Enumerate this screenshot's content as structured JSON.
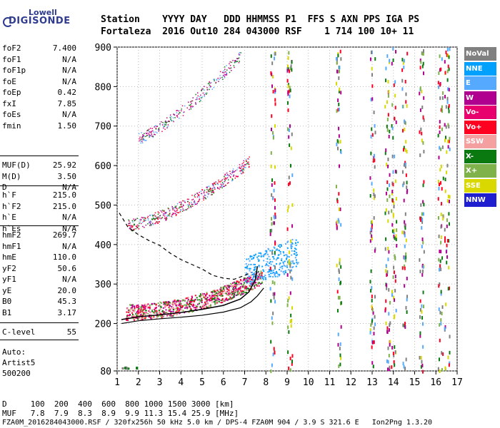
{
  "logo": {
    "line1": "Lowell",
    "line2": "DIGISONDE"
  },
  "header": {
    "line1": "Station    YYYY DAY   DDD HHMMSS P1  FFS S AXN PPS IGA PS",
    "line2": "Fortaleza  2016 Out10 284 043000 RSF    1 714 100 10+ 11"
  },
  "params": {
    "group1": [
      {
        "k": "foF2",
        "v": "7.400"
      },
      {
        "k": "foF1",
        "v": "N/A"
      },
      {
        "k": "foF1p",
        "v": "N/A"
      },
      {
        "k": "foE",
        "v": "N/A"
      },
      {
        "k": "foEp",
        "v": "0.42"
      },
      {
        "k": "fxI",
        "v": "7.85"
      },
      {
        "k": "foEs",
        "v": "N/A"
      },
      {
        "k": "fmin",
        "v": "1.50"
      }
    ],
    "group2": [
      {
        "k": "MUF(D)",
        "v": "25.92"
      },
      {
        "k": "M(D)",
        "v": "3.50"
      },
      {
        "k": "D",
        "v": "N/A"
      }
    ],
    "group3": [
      {
        "k": "h`F",
        "v": "215.0"
      },
      {
        "k": "h`F2",
        "v": "215.0"
      },
      {
        "k": "h`E",
        "v": "N/A"
      },
      {
        "k": "h`Es",
        "v": "N/A"
      }
    ],
    "group4": [
      {
        "k": "hmF2",
        "v": "269.7"
      },
      {
        "k": "hmF1",
        "v": "N/A"
      },
      {
        "k": "hmE",
        "v": "110.0"
      },
      {
        "k": "yF2",
        "v": "50.6"
      },
      {
        "k": "yF1",
        "v": "N/A"
      },
      {
        "k": "yE",
        "v": "20.0"
      },
      {
        "k": "B0",
        "v": "45.3"
      },
      {
        "k": "B1",
        "v": "3.17"
      }
    ],
    "group5": [
      {
        "k": "C-level",
        "v": "55"
      }
    ]
  },
  "auto": {
    "l1": "Auto:",
    "l2": "Artist5",
    "l3": "500200"
  },
  "footer": {
    "row1": "D     100  200  400  600  800 1000 1500 3000 [km]",
    "row2": "MUF   7.8  7.9  8.3  8.9  9.9 11.3 15.4 25.9 [MHz]",
    "row3": "FZA0M_2016284043000.RSF / 320fx256h 50 kHz 5.0 km / DPS-4 FZA0M 904 / 3.9 S 321.6 E   Ion2Png 1.3.20"
  },
  "legend": [
    {
      "label": "NoVal",
      "color": "#808080"
    },
    {
      "label": "NNE",
      "color": "#00a0ff"
    },
    {
      "label": "E",
      "color": "#55aaff"
    },
    {
      "label": "W",
      "color": "#b0008f"
    },
    {
      "label": "Vo-",
      "color": "#e8006e"
    },
    {
      "label": "Vo+",
      "color": "#ff0020"
    },
    {
      "label": "SSW",
      "color": "#f5a0a0"
    },
    {
      "label": "X-",
      "color": "#0a7a10"
    },
    {
      "label": "X+",
      "color": "#7fb24a"
    },
    {
      "label": "SSE",
      "color": "#d9d800"
    },
    {
      "label": "NNW",
      "color": "#1f1fd0"
    }
  ],
  "chart_data": {
    "type": "scatter",
    "xlim": [
      1,
      17
    ],
    "ylim": [
      80,
      900
    ],
    "x_ticks": [
      "1",
      "2",
      "3",
      "4",
      "5",
      "6",
      "7",
      "8",
      "9",
      "10",
      "11",
      "12",
      "13",
      "14",
      "15",
      "16",
      "17"
    ],
    "y_ticks": [
      "80",
      "200",
      "300",
      "400",
      "500",
      "600",
      "700",
      "800",
      "900"
    ],
    "grid": "dotted",
    "series": [
      {
        "name": "trace-h",
        "values": [
          [
            1.2,
            210
          ],
          [
            2,
            217
          ],
          [
            3,
            222
          ],
          [
            4,
            228
          ],
          [
            5,
            236
          ],
          [
            6,
            246
          ],
          [
            6.8,
            262
          ],
          [
            7.2,
            280
          ],
          [
            7.5,
            310
          ],
          [
            7.6,
            345
          ]
        ]
      },
      {
        "name": "profile",
        "values": [
          [
            1.2,
            200
          ],
          [
            2,
            207
          ],
          [
            3,
            212
          ],
          [
            4,
            216
          ],
          [
            5,
            221
          ],
          [
            6,
            229
          ],
          [
            6.8,
            240
          ],
          [
            7.3,
            255
          ],
          [
            7.6,
            270
          ],
          [
            7.9,
            290
          ]
        ]
      },
      {
        "name": "model",
        "values": [
          [
            1.1,
            480
          ],
          [
            1.5,
            445
          ],
          [
            2,
            425
          ],
          [
            2.5,
            410
          ],
          [
            3,
            398
          ],
          [
            3.5,
            378
          ],
          [
            4,
            362
          ],
          [
            4.5,
            350
          ],
          [
            5,
            338
          ],
          [
            5.5,
            322
          ],
          [
            6,
            315
          ],
          [
            6.5,
            312
          ],
          [
            7,
            322
          ],
          [
            7.3,
            330
          ]
        ]
      }
    ]
  }
}
